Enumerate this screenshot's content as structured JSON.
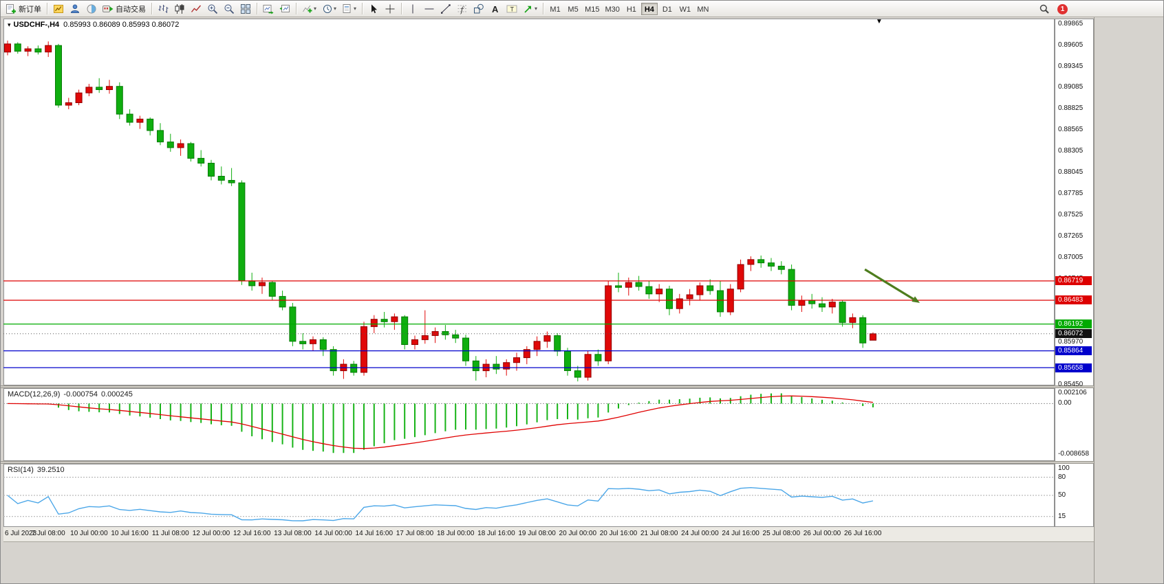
{
  "toolbar": {
    "new_order_label": "新订单",
    "autotrading_label": "自动交易",
    "groups": [
      {
        "items": [
          {
            "name": "new-order-button",
            "icon": "new-order",
            "label": "新订单"
          }
        ]
      },
      {
        "items": [
          {
            "name": "new-chart-button",
            "icon": "new-chart"
          },
          {
            "name": "profiles-button",
            "icon": "profiles"
          },
          {
            "name": "data-window-button",
            "icon": "data-window"
          },
          {
            "name": "autotrading-button",
            "icon": "autotrading",
            "label": "自动交易"
          }
        ]
      },
      {
        "items": [
          {
            "name": "bar-chart-button",
            "icon": "bar-chart"
          },
          {
            "name": "candle-chart-button",
            "icon": "candle-chart"
          },
          {
            "name": "line-chart-button",
            "icon": "line-chart"
          },
          {
            "name": "zoom-in-button",
            "icon": "zoom-in"
          },
          {
            "name": "zoom-out-button",
            "icon": "zoom-out"
          },
          {
            "name": "tile-windows-button",
            "icon": "tile-windows"
          }
        ]
      },
      {
        "items": [
          {
            "name": "auto-scroll-button",
            "icon": "auto-scroll"
          },
          {
            "name": "chart-shift-button",
            "icon": "chart-shift"
          }
        ]
      },
      {
        "items": [
          {
            "name": "indicators-button",
            "icon": "indicators",
            "dropdown": true
          },
          {
            "name": "periods-button",
            "icon": "periods",
            "dropdown": true
          },
          {
            "name": "templates-button",
            "icon": "templates",
            "dropdown": true
          }
        ]
      },
      {
        "items": [
          {
            "name": "cursor-button",
            "icon": "cursor"
          },
          {
            "name": "crosshair-button",
            "icon": "crosshair"
          }
        ]
      },
      {
        "items": [
          {
            "name": "vertical-line-button",
            "icon": "v-line"
          },
          {
            "name": "horizontal-line-button",
            "icon": "h-line"
          },
          {
            "name": "trendline-button",
            "icon": "trendline"
          },
          {
            "name": "fibonacci-button",
            "icon": "fibonacci"
          },
          {
            "name": "shapes-button",
            "icon": "shapes"
          },
          {
            "name": "text-button",
            "icon": "text"
          },
          {
            "name": "text-label-button",
            "icon": "text-label"
          },
          {
            "name": "arrows-button",
            "icon": "arrows",
            "dropdown": true
          }
        ]
      }
    ],
    "timeframes": [
      "M1",
      "M5",
      "M15",
      "M30",
      "H1",
      "H4",
      "D1",
      "W1",
      "MN"
    ],
    "active_timeframe": "H4",
    "notification_count": "1"
  },
  "chart": {
    "symbol_period": "USDCHF-,H4",
    "ohlc_text": "0.85993  0.86089  0.85993  0.86072",
    "bid_tag": "0.86072"
  },
  "macd": {
    "label": "MACD(12,26,9)",
    "value_main": "-0.000754",
    "value_signal": "0.000245",
    "fast": 12,
    "slow": 26,
    "signal": 9,
    "axis": [
      0.002106,
      0,
      -0.008658
    ],
    "scale_max": 0.0024,
    "scale_min": -0.0096,
    "histogram_color": "#16b316",
    "signal_color": "#e00000"
  },
  "rsi": {
    "label": "RSI(14)",
    "value": "39.2510",
    "period": 14,
    "levels": [
      80,
      50,
      15
    ],
    "axis_labels": [
      100,
      80,
      50,
      15
    ],
    "line_color": "#4aa6e8",
    "scale": [
      0,
      100
    ]
  },
  "chart_data": {
    "type": "candlestick",
    "symbol": "USDCHF",
    "timeframe": "H4",
    "y_range": [
      0.8544,
      0.8993
    ],
    "y_ticks": [
      0.89865,
      0.89605,
      0.89345,
      0.89085,
      0.88825,
      0.88565,
      0.88305,
      0.88045,
      0.87785,
      0.87525,
      0.87265,
      0.87005,
      0.86745,
      0.8597,
      0.8545
    ],
    "current_price": 0.86072,
    "hlines": [
      {
        "price": 0.86719,
        "color": "#dd0000",
        "label": "0.86719"
      },
      {
        "price": 0.86483,
        "color": "#dd0000",
        "label": "0.86483"
      },
      {
        "price": 0.86192,
        "color": "#00aa00",
        "label": "0.86192"
      },
      {
        "price": 0.85864,
        "color": "#0000cc",
        "label": "0.85864"
      },
      {
        "price": 0.85658,
        "color": "#0000cc",
        "label": "0.85658"
      }
    ],
    "x_labels": [
      {
        "i": 0,
        "label": "6 Jul 2023"
      },
      {
        "i": 4,
        "label": "7 Jul 08:00"
      },
      {
        "i": 8,
        "label": "10 Jul 00:00"
      },
      {
        "i": 12,
        "label": "10 Jul 16:00"
      },
      {
        "i": 16,
        "label": "11 Jul 08:00"
      },
      {
        "i": 20,
        "label": "12 Jul 00:00"
      },
      {
        "i": 24,
        "label": "12 Jul 16:00"
      },
      {
        "i": 28,
        "label": "13 Jul 08:00"
      },
      {
        "i": 32,
        "label": "14 Jul 00:00"
      },
      {
        "i": 36,
        "label": "14 Jul 16:00"
      },
      {
        "i": 40,
        "label": "17 Jul 08:00"
      },
      {
        "i": 44,
        "label": "18 Jul 00:00"
      },
      {
        "i": 48,
        "label": "18 Jul 16:00"
      },
      {
        "i": 52,
        "label": "19 Jul 08:00"
      },
      {
        "i": 56,
        "label": "20 Jul 00:00"
      },
      {
        "i": 60,
        "label": "20 Jul 16:00"
      },
      {
        "i": 64,
        "label": "21 Jul 08:00"
      },
      {
        "i": 68,
        "label": "24 Jul 00:00"
      },
      {
        "i": 72,
        "label": "24 Jul 16:00"
      },
      {
        "i": 76,
        "label": "25 Jul 08:00"
      },
      {
        "i": 80,
        "label": "26 Jul 00:00"
      },
      {
        "i": 84,
        "label": "26 Jul 16:00"
      }
    ],
    "candles": [
      [
        0.8952,
        0.8966,
        0.8948,
        0.8962
      ],
      [
        0.8962,
        0.8964,
        0.895,
        0.8953
      ],
      [
        0.8953,
        0.8959,
        0.8947,
        0.8956
      ],
      [
        0.8956,
        0.896,
        0.8949,
        0.8952
      ],
      [
        0.8952,
        0.8965,
        0.8946,
        0.896
      ],
      [
        0.896,
        0.8962,
        0.8884,
        0.8887
      ],
      [
        0.8887,
        0.8896,
        0.8882,
        0.889
      ],
      [
        0.889,
        0.8906,
        0.8887,
        0.8902
      ],
      [
        0.8902,
        0.8913,
        0.8898,
        0.8909
      ],
      [
        0.8909,
        0.892,
        0.8902,
        0.8906
      ],
      [
        0.8906,
        0.8918,
        0.8901,
        0.891
      ],
      [
        0.891,
        0.8915,
        0.887,
        0.8876
      ],
      [
        0.8876,
        0.8882,
        0.8862,
        0.8866
      ],
      [
        0.8866,
        0.8874,
        0.8858,
        0.887
      ],
      [
        0.887,
        0.8872,
        0.885,
        0.8856
      ],
      [
        0.8856,
        0.8865,
        0.8838,
        0.8842
      ],
      [
        0.8842,
        0.8852,
        0.883,
        0.8835
      ],
      [
        0.8835,
        0.8845,
        0.8825,
        0.884
      ],
      [
        0.884,
        0.8842,
        0.8818,
        0.8822
      ],
      [
        0.8822,
        0.8832,
        0.8812,
        0.8816
      ],
      [
        0.8816,
        0.882,
        0.8795,
        0.88
      ],
      [
        0.88,
        0.8812,
        0.879,
        0.8795
      ],
      [
        0.8795,
        0.881,
        0.8788,
        0.8792
      ],
      [
        0.8792,
        0.8795,
        0.8667,
        0.8672
      ],
      [
        0.8672,
        0.8682,
        0.866,
        0.8666
      ],
      [
        0.8666,
        0.8676,
        0.8656,
        0.867
      ],
      [
        0.867,
        0.8672,
        0.8648,
        0.8653
      ],
      [
        0.8653,
        0.866,
        0.8636,
        0.864
      ],
      [
        0.864,
        0.8645,
        0.8592,
        0.8598
      ],
      [
        0.8598,
        0.8608,
        0.8588,
        0.8595
      ],
      [
        0.8595,
        0.8604,
        0.8586,
        0.86
      ],
      [
        0.86,
        0.8603,
        0.858,
        0.8588
      ],
      [
        0.8588,
        0.8592,
        0.8556,
        0.8562
      ],
      [
        0.8562,
        0.8576,
        0.8552,
        0.857
      ],
      [
        0.857,
        0.8574,
        0.8556,
        0.856
      ],
      [
        0.856,
        0.8622,
        0.8556,
        0.8616
      ],
      [
        0.8616,
        0.863,
        0.8608,
        0.8625
      ],
      [
        0.8625,
        0.8634,
        0.8615,
        0.8622
      ],
      [
        0.8622,
        0.8632,
        0.8612,
        0.8628
      ],
      [
        0.8628,
        0.863,
        0.8588,
        0.8594
      ],
      [
        0.8594,
        0.8605,
        0.8588,
        0.86
      ],
      [
        0.86,
        0.8636,
        0.8595,
        0.8605
      ],
      [
        0.8605,
        0.8615,
        0.8596,
        0.861
      ],
      [
        0.861,
        0.8618,
        0.86,
        0.8606
      ],
      [
        0.8606,
        0.8612,
        0.8596,
        0.8602
      ],
      [
        0.8602,
        0.8606,
        0.8568,
        0.8574
      ],
      [
        0.8574,
        0.858,
        0.855,
        0.8562
      ],
      [
        0.8562,
        0.8576,
        0.8554,
        0.857
      ],
      [
        0.857,
        0.858,
        0.8558,
        0.8564
      ],
      [
        0.8564,
        0.8576,
        0.8556,
        0.8572
      ],
      [
        0.8572,
        0.8584,
        0.8562,
        0.8578
      ],
      [
        0.8578,
        0.8592,
        0.857,
        0.8588
      ],
      [
        0.8588,
        0.8604,
        0.858,
        0.8598
      ],
      [
        0.8598,
        0.861,
        0.859,
        0.8605
      ],
      [
        0.8605,
        0.8608,
        0.858,
        0.8586
      ],
      [
        0.8586,
        0.859,
        0.8556,
        0.8562
      ],
      [
        0.8562,
        0.8568,
        0.8549,
        0.8554
      ],
      [
        0.8554,
        0.8586,
        0.855,
        0.8582
      ],
      [
        0.8582,
        0.8588,
        0.8568,
        0.8574
      ],
      [
        0.8574,
        0.8672,
        0.857,
        0.8666
      ],
      [
        0.8666,
        0.8682,
        0.8658,
        0.8664
      ],
      [
        0.8664,
        0.8676,
        0.8654,
        0.867
      ],
      [
        0.867,
        0.8678,
        0.866,
        0.8665
      ],
      [
        0.8665,
        0.8672,
        0.865,
        0.8656
      ],
      [
        0.8656,
        0.8668,
        0.8646,
        0.8662
      ],
      [
        0.8662,
        0.8666,
        0.863,
        0.8638
      ],
      [
        0.8638,
        0.8656,
        0.8632,
        0.865
      ],
      [
        0.865,
        0.8662,
        0.8642,
        0.8655
      ],
      [
        0.8655,
        0.867,
        0.8648,
        0.8666
      ],
      [
        0.8666,
        0.8674,
        0.8655,
        0.866
      ],
      [
        0.866,
        0.8672,
        0.8628,
        0.8634
      ],
      [
        0.8634,
        0.8668,
        0.863,
        0.8662
      ],
      [
        0.8662,
        0.8698,
        0.8658,
        0.8692
      ],
      [
        0.8692,
        0.8702,
        0.8684,
        0.8698
      ],
      [
        0.8698,
        0.8703,
        0.8688,
        0.8694
      ],
      [
        0.8694,
        0.87,
        0.8684,
        0.869
      ],
      [
        0.869,
        0.8696,
        0.868,
        0.8686
      ],
      [
        0.8686,
        0.8692,
        0.8636,
        0.8642
      ],
      [
        0.8642,
        0.8654,
        0.8634,
        0.8648
      ],
      [
        0.8648,
        0.8656,
        0.8638,
        0.8644
      ],
      [
        0.8644,
        0.8652,
        0.8634,
        0.864
      ],
      [
        0.864,
        0.865,
        0.8632,
        0.8646
      ],
      [
        0.8646,
        0.8648,
        0.8616,
        0.8621
      ],
      [
        0.8621,
        0.8632,
        0.8614,
        0.8627
      ],
      [
        0.8627,
        0.863,
        0.859,
        0.8596
      ],
      [
        0.85993,
        0.86089,
        0.85993,
        0.86072
      ]
    ],
    "arrow": {
      "from_index": 84.2,
      "from_price": 0.8686,
      "to_index": 89.6,
      "to_price": 0.8645,
      "color": "#4e7d1e"
    },
    "colors": {
      "bull": "#e00808",
      "bull_border": "#8f0000",
      "bear": "#0fae0f",
      "bear_border": "#067a06"
    }
  }
}
